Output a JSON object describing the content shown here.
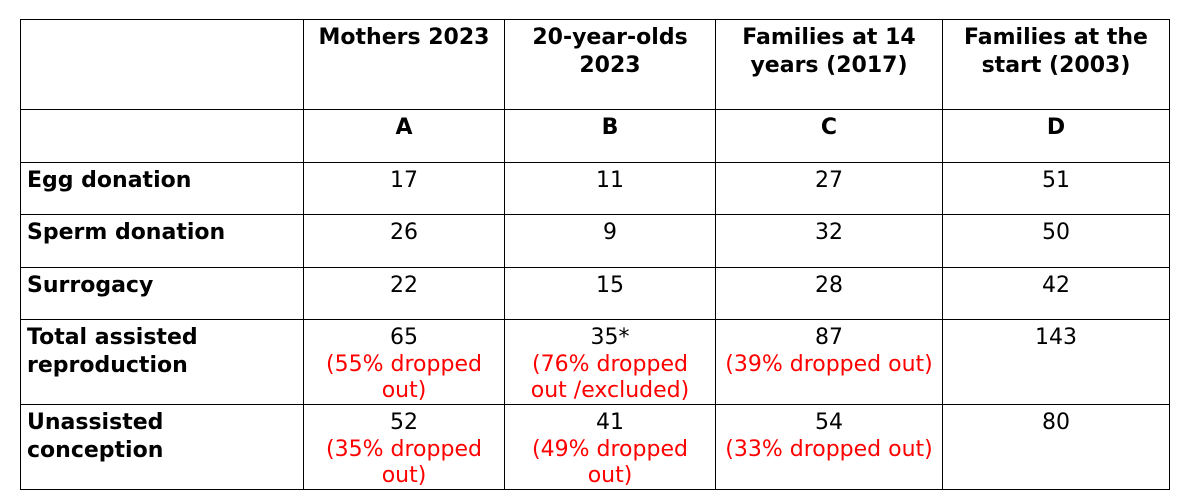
{
  "columns": [
    {
      "title": "Mothers 2023",
      "letter": "A"
    },
    {
      "title": "20-year-olds 2023",
      "letter": "B"
    },
    {
      "title": "Families at 14 years (2017)",
      "letter": "C"
    },
    {
      "title": "Families at the start (2003)",
      "letter": "D"
    }
  ],
  "rows": [
    {
      "label": "Egg donation",
      "values": [
        {
          "number": "17",
          "note": ""
        },
        {
          "number": "11",
          "note": ""
        },
        {
          "number": "27",
          "note": ""
        },
        {
          "number": "51",
          "note": ""
        }
      ]
    },
    {
      "label": "Sperm donation",
      "values": [
        {
          "number": "26",
          "note": ""
        },
        {
          "number": "9",
          "note": ""
        },
        {
          "number": "32",
          "note": ""
        },
        {
          "number": "50",
          "note": ""
        }
      ]
    },
    {
      "label": "Surrogacy",
      "values": [
        {
          "number": "22",
          "note": ""
        },
        {
          "number": "15",
          "note": ""
        },
        {
          "number": "28",
          "note": ""
        },
        {
          "number": "42",
          "note": ""
        }
      ]
    },
    {
      "label": "Total assisted reproduction",
      "values": [
        {
          "number": "65",
          "note": "(55% dropped out)"
        },
        {
          "number": "35*",
          "note": "(76% dropped out /excluded)"
        },
        {
          "number": "87",
          "note": "(39% dropped out)"
        },
        {
          "number": "143",
          "note": ""
        }
      ]
    },
    {
      "label": "Unassisted conception",
      "values": [
        {
          "number": "52",
          "note": "(35% dropped out)"
        },
        {
          "number": "41",
          "note": "(49% dropped out)"
        },
        {
          "number": "54",
          "note": "(33% dropped out)"
        },
        {
          "number": "80",
          "note": ""
        }
      ]
    }
  ],
  "colors": {
    "dropout_note": "#ff0000",
    "border": "#000000"
  }
}
